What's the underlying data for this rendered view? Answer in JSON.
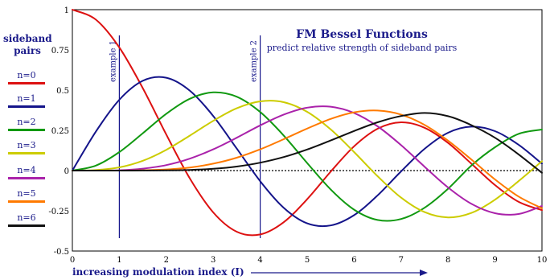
{
  "chart_data": {
    "type": "line",
    "title": "FM Bessel Functions",
    "subtitle": "predict relative strength of sideband pairs",
    "xlabel": "increasing modulation index (I)",
    "legend_title": [
      "sideband",
      "pairs"
    ],
    "xlim": [
      0,
      10
    ],
    "ylim": [
      -0.5,
      1
    ],
    "xticks": [
      0,
      1,
      2,
      3,
      4,
      5,
      6,
      7,
      8,
      9,
      10
    ],
    "yticks": [
      {
        "value": 1,
        "label": "1"
      },
      {
        "value": 0.75,
        "label": "0.75"
      },
      {
        "value": 0.5,
        "label": "0.5"
      },
      {
        "value": 0.25,
        "label": "0.25"
      },
      {
        "value": 0,
        "label": "0"
      },
      {
        "value": -0.25,
        "label": "-0.25"
      },
      {
        "value": -0.5,
        "label": "-0.5"
      }
    ],
    "grid": false,
    "zero_line": "dotted",
    "legend_position": "left",
    "annotations": [
      {
        "x": 1,
        "label": "example 1"
      },
      {
        "x": 4,
        "label": "example 2"
      }
    ],
    "x": [
      0,
      0.5,
      1,
      1.5,
      2,
      2.5,
      3,
      3.5,
      4,
      4.5,
      5,
      5.5,
      6,
      6.5,
      7,
      7.5,
      8,
      8.5,
      9,
      9.5,
      10
    ],
    "series": [
      {
        "name": "n=0",
        "color": "#dd1111",
        "values": [
          1,
          0.938,
          0.765,
          0.512,
          0.224,
          -0.048,
          -0.26,
          -0.38,
          -0.397,
          -0.321,
          -0.178,
          -0.007,
          0.151,
          0.26,
          0.3,
          0.266,
          0.172,
          0.042,
          -0.09,
          -0.194,
          -0.246
        ]
      },
      {
        "name": "n=1",
        "color": "#14148a",
        "values": [
          0,
          0.242,
          0.44,
          0.558,
          0.577,
          0.497,
          0.339,
          0.137,
          -0.066,
          -0.231,
          -0.328,
          -0.341,
          -0.277,
          -0.154,
          -0.005,
          0.135,
          0.235,
          0.273,
          0.245,
          0.161,
          0.043
        ]
      },
      {
        "name": "n=2",
        "color": "#119911",
        "values": [
          0,
          0.031,
          0.115,
          0.232,
          0.353,
          0.446,
          0.486,
          0.459,
          0.364,
          0.218,
          0.047,
          -0.117,
          -0.243,
          -0.307,
          -0.301,
          -0.231,
          -0.113,
          0.032,
          0.145,
          0.228,
          0.255
        ]
      },
      {
        "name": "n=3",
        "color": "#cccc00",
        "values": [
          0,
          0.003,
          0.02,
          0.061,
          0.129,
          0.217,
          0.309,
          0.387,
          0.43,
          0.425,
          0.365,
          0.256,
          0.115,
          -0.035,
          -0.168,
          -0.258,
          -0.291,
          -0.263,
          -0.181,
          -0.066,
          0.058
        ]
      },
      {
        "name": "n=4",
        "color": "#aa22aa",
        "values": [
          0,
          0.0002,
          0.002,
          0.012,
          0.034,
          0.074,
          0.132,
          0.204,
          0.281,
          0.348,
          0.391,
          0.397,
          0.358,
          0.275,
          0.158,
          0.024,
          -0.105,
          -0.207,
          -0.265,
          -0.27,
          -0.22
        ]
      },
      {
        "name": "n=5",
        "color": "#ff7a00",
        "values": [
          0,
          0,
          0.0002,
          0.002,
          0.007,
          0.019,
          0.043,
          0.08,
          0.132,
          0.195,
          0.261,
          0.321,
          0.362,
          0.373,
          0.348,
          0.284,
          0.186,
          0.068,
          -0.055,
          -0.161,
          -0.234
        ]
      },
      {
        "name": "n=6",
        "color": "#111111",
        "values": [
          0,
          0,
          0,
          0.0003,
          0.001,
          0.004,
          0.011,
          0.025,
          0.049,
          0.084,
          0.131,
          0.187,
          0.246,
          0.3,
          0.339,
          0.358,
          0.338,
          0.282,
          0.204,
          0.101,
          -0.014
        ]
      }
    ]
  }
}
